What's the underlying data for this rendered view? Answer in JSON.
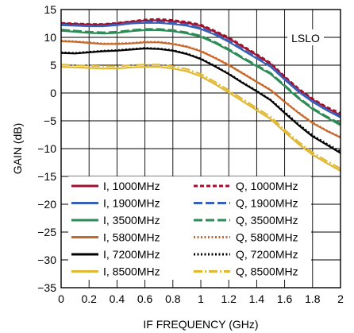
{
  "chart_data": {
    "type": "line",
    "title": "",
    "annotation": "LSLO",
    "xlabel": "IF FREQUENCY (GHz)",
    "ylabel": "GAIN (dB)",
    "xlim": [
      0,
      2
    ],
    "ylim": [
      -35,
      15
    ],
    "x_ticks": [
      "0",
      "0.2",
      "0.4",
      "0.6",
      "0.8",
      "1",
      "1.2",
      "1.4",
      "1.6",
      "1.8",
      "2"
    ],
    "y_ticks": [
      "15",
      "10",
      "5",
      "0",
      "−5",
      "−10",
      "−15",
      "−20",
      "−25",
      "−30",
      "−35"
    ],
    "x_tick_values": [
      0,
      0.2,
      0.4,
      0.6,
      0.8,
      1,
      1.2,
      1.4,
      1.6,
      1.8,
      2
    ],
    "y_tick_values": [
      15,
      10,
      5,
      0,
      -5,
      -10,
      -15,
      -20,
      -25,
      -30,
      -35
    ],
    "grid": true,
    "legend_placement": "lower-left",
    "x": [
      0,
      0.1,
      0.2,
      0.3,
      0.4,
      0.5,
      0.6,
      0.7,
      0.8,
      0.9,
      1.0,
      1.1,
      1.2,
      1.3,
      1.4,
      1.5,
      1.6,
      1.7,
      1.8,
      1.9,
      2.0
    ],
    "series": [
      {
        "name": "I, 1000MHz",
        "color": "#a0102c",
        "dash": "solid",
        "values": [
          12.5,
          12.4,
          12.3,
          12.3,
          12.5,
          12.8,
          13.0,
          13.1,
          12.9,
          12.6,
          12.1,
          11.0,
          9.8,
          8.3,
          6.8,
          5.2,
          2.8,
          0.6,
          -1.2,
          -2.7,
          -4.0
        ]
      },
      {
        "name": "Q, 1000MHz",
        "color": "#a0102c",
        "dash": "short",
        "values": [
          12.6,
          12.5,
          12.4,
          12.4,
          12.6,
          12.9,
          13.2,
          13.3,
          13.1,
          12.8,
          12.3,
          11.2,
          10.0,
          8.5,
          7.0,
          5.4,
          3.0,
          0.8,
          -1.0,
          -2.5,
          -3.6
        ]
      },
      {
        "name": "I, 1900MHz",
        "color": "#3a5fb8",
        "dash": "solid",
        "values": [
          12.2,
          12.1,
          12.0,
          12.0,
          12.2,
          12.5,
          12.6,
          12.6,
          12.4,
          12.1,
          11.5,
          10.5,
          9.2,
          7.7,
          6.2,
          4.7,
          2.4,
          0.2,
          -1.6,
          -3.1,
          -4.4
        ]
      },
      {
        "name": "Q, 1900MHz",
        "color": "#3a5fb8",
        "dash": "long",
        "values": [
          12.3,
          12.2,
          12.1,
          12.1,
          12.3,
          12.6,
          12.8,
          12.8,
          12.6,
          12.3,
          11.7,
          10.7,
          9.4,
          7.9,
          6.4,
          4.9,
          2.6,
          0.4,
          -1.4,
          -2.9,
          -4.2
        ]
      },
      {
        "name": "I, 3500MHz",
        "color": "#2e8b57",
        "dash": "solid",
        "values": [
          11.2,
          11.0,
          10.8,
          10.7,
          10.8,
          11.1,
          11.3,
          11.3,
          11.1,
          10.7,
          10.1,
          9.0,
          7.7,
          6.2,
          4.8,
          3.4,
          1.2,
          -1.0,
          -2.9,
          -4.4,
          -5.8
        ]
      },
      {
        "name": "Q, 3500MHz",
        "color": "#2e8b57",
        "dash": "long",
        "values": [
          11.4,
          11.2,
          11.0,
          10.9,
          11.0,
          11.3,
          11.5,
          11.5,
          11.3,
          10.9,
          10.3,
          9.2,
          7.9,
          6.4,
          5.0,
          3.6,
          1.4,
          -0.8,
          -2.7,
          -4.2,
          -5.5
        ]
      },
      {
        "name": "I, 5800MHz",
        "color": "#c8692c",
        "dash": "solid",
        "values": [
          9.3,
          9.2,
          9.0,
          8.8,
          8.8,
          8.9,
          9.1,
          9.1,
          8.8,
          8.3,
          7.5,
          6.3,
          5.0,
          3.5,
          2.0,
          0.5,
          -1.6,
          -3.6,
          -5.4,
          -6.8,
          -8.0
        ]
      },
      {
        "name": "Q, 5800MHz",
        "color": "#c8692c",
        "dash": "dotted",
        "values": [
          9.4,
          9.3,
          9.1,
          8.9,
          8.9,
          9.0,
          9.2,
          9.2,
          8.9,
          8.4,
          7.6,
          6.4,
          5.1,
          3.6,
          2.1,
          0.6,
          -1.5,
          -3.5,
          -5.3,
          -6.7,
          -7.9
        ]
      },
      {
        "name": "I, 7200MHz",
        "color": "#000000",
        "dash": "solid",
        "values": [
          7.2,
          7.1,
          7.3,
          7.5,
          7.6,
          7.8,
          8.0,
          7.9,
          7.6,
          7.0,
          6.1,
          4.8,
          3.4,
          1.8,
          0.3,
          -1.3,
          -3.6,
          -5.8,
          -7.8,
          -9.3,
          -10.8
        ]
      },
      {
        "name": "Q, 7200MHz",
        "color": "#000000",
        "dash": "dotted",
        "values": [
          7.3,
          7.2,
          7.4,
          7.6,
          7.7,
          7.9,
          8.1,
          8.0,
          7.7,
          7.1,
          6.2,
          4.9,
          3.5,
          1.9,
          0.4,
          -1.2,
          -3.4,
          -5.6,
          -7.6,
          -9.1,
          -10.5
        ]
      },
      {
        "name": "I, 8500MHz",
        "color": "#e0b832",
        "dash": "solid",
        "values": [
          4.7,
          4.6,
          4.5,
          4.4,
          4.4,
          4.6,
          4.7,
          4.7,
          4.4,
          3.9,
          3.0,
          1.6,
          0.1,
          -1.5,
          -3.1,
          -4.7,
          -7.0,
          -9.2,
          -11.1,
          -12.6,
          -14.0
        ]
      },
      {
        "name": "Q, 8500MHz",
        "color": "#e0b832",
        "dash": "dashdot",
        "values": [
          5.1,
          5.0,
          4.9,
          4.8,
          4.8,
          5.0,
          5.1,
          5.1,
          4.8,
          4.3,
          3.4,
          2.0,
          0.5,
          -1.1,
          -2.7,
          -4.3,
          -6.6,
          -8.8,
          -10.7,
          -12.2,
          -13.6
        ]
      }
    ]
  }
}
